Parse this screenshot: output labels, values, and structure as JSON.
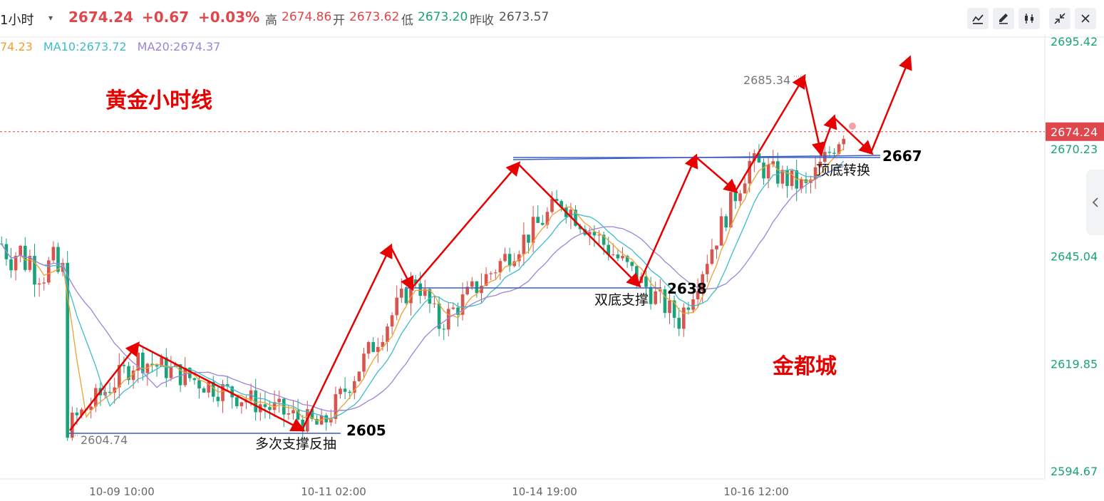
{
  "header": {
    "period": "1小时",
    "price": "2674.24",
    "change": "+0.67",
    "change_pct": "+0.03%",
    "high_label": "高",
    "high": "2674.86",
    "open_label": "开",
    "open": "2673.62",
    "low_label": "低",
    "low": "2673.20",
    "prev_label": "昨收",
    "prev": "2673.57"
  },
  "ma_row": {
    "ma5": "74.23",
    "ma10": "MA10:2673.72",
    "ma20": "MA20:2674.37"
  },
  "toolbar": [
    "draw-line-icon",
    "pencil-icon",
    "candlestick-icon",
    "collapse-icon",
    "close-icon"
  ],
  "colors": {
    "up": "#d9534f",
    "down": "#1aa37a",
    "ma5": "#f0a030",
    "ma10": "#3cbccc",
    "ma20": "#9c84d8",
    "annotation": "#e60000",
    "support": "#3a5ec6",
    "price_tag": "#e0474c"
  },
  "annotations": {
    "title": "黄金小时线",
    "brand": "金都城",
    "support_1_label": "多次支撑反抽",
    "support_1_value": "2605",
    "support_2_label": "双底支撑",
    "support_2_value": "2638",
    "support_3_label": "顶底转换",
    "support_3_value": "2667",
    "low_marker": "2604.74",
    "high_marker": "2685.34"
  },
  "chart_data": {
    "type": "candlestick",
    "title": "黄金小时线",
    "x_ticks": [
      "10-09 10:00",
      "10-11 02:00",
      "10-14 19:00",
      "10-16 12:00"
    ],
    "y_ticks": [
      2594.67,
      2619.85,
      2645.04,
      2670.23,
      2695.42
    ],
    "ylim": [
      2594.67,
      2695.42
    ],
    "current_price": 2674.24,
    "low_marker": 2604.74,
    "high_marker": 2685.34,
    "support_levels": [
      2605,
      2638,
      2667
    ],
    "path_points": [
      [
        1,
        2605
      ],
      [
        16,
        2621
      ],
      [
        55,
        2605
      ],
      [
        75,
        2640
      ],
      [
        80,
        2629
      ],
      [
        106,
        2658
      ],
      [
        131,
        2630
      ],
      [
        146,
        2667
      ],
      [
        158,
        2661
      ],
      [
        171,
        2683
      ],
      [
        175,
        2663
      ],
      [
        178,
        2675
      ],
      [
        186,
        2665
      ],
      [
        193,
        2695
      ]
    ],
    "series": [
      {
        "name": "MA10",
        "values": []
      },
      {
        "name": "MA20",
        "values": []
      }
    ]
  }
}
